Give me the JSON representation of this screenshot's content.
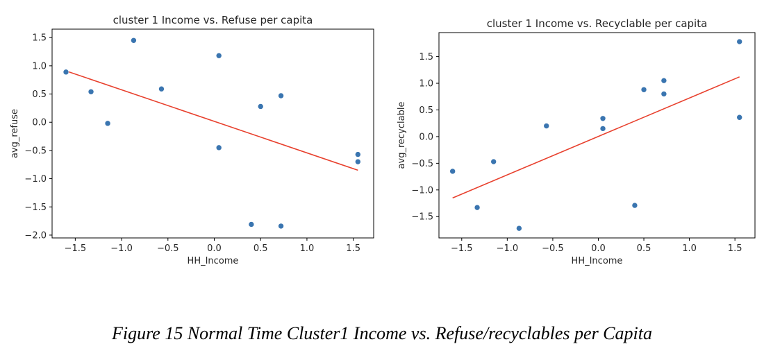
{
  "caption": "Figure 15 Normal Time Cluster1 Income vs. Refuse/recyclables per Capita",
  "colors": {
    "points": "#3a75b0",
    "fit_line": "#e8412e",
    "axis": "#000000"
  },
  "chart_data": [
    {
      "type": "scatter",
      "title": "cluster 1 Income vs. Refuse per capita",
      "xlabel": "HH_Income",
      "ylabel": "avg_refuse",
      "xlim": [
        -1.75,
        1.72
      ],
      "ylim": [
        -2.05,
        1.65
      ],
      "xticks": [
        -1.5,
        -1.0,
        -0.5,
        0.0,
        0.5,
        1.0,
        1.5
      ],
      "xtick_labels": [
        "−1.5",
        "−1.0",
        "−0.5",
        "0.0",
        "0.5",
        "1.0",
        "1.5"
      ],
      "yticks": [
        1.5,
        1.0,
        0.5,
        0.0,
        -0.5,
        -1.0,
        -1.5,
        -2.0
      ],
      "ytick_labels": [
        "1.5",
        "1.0",
        "0.5",
        "0.0",
        "−0.5",
        "−1.0",
        "−1.5",
        "−2.0"
      ],
      "points": [
        {
          "x": -1.6,
          "y": 0.89
        },
        {
          "x": -1.33,
          "y": 0.54
        },
        {
          "x": -1.15,
          "y": -0.02
        },
        {
          "x": -0.87,
          "y": 1.45
        },
        {
          "x": -0.57,
          "y": 0.59
        },
        {
          "x": 0.05,
          "y": 1.18
        },
        {
          "x": 0.05,
          "y": -0.45
        },
        {
          "x": 0.4,
          "y": -1.81
        },
        {
          "x": 0.5,
          "y": 0.28
        },
        {
          "x": 0.72,
          "y": 0.47
        },
        {
          "x": 0.72,
          "y": -1.84
        },
        {
          "x": 1.55,
          "y": -0.57
        },
        {
          "x": 1.55,
          "y": -0.7
        }
      ],
      "fit_line": {
        "x": [
          -1.6,
          1.55
        ],
        "y": [
          0.91,
          -0.85
        ]
      },
      "grid": false
    },
    {
      "type": "scatter",
      "title": "cluster 1 Income vs. Recyclable per capita",
      "xlabel": "HH_Income",
      "ylabel": "avg_recyclable",
      "xlim": [
        -1.75,
        1.72
      ],
      "ylim": [
        -1.9,
        1.95
      ],
      "xticks": [
        -1.5,
        -1.0,
        -0.5,
        0.0,
        0.5,
        1.0,
        1.5
      ],
      "xtick_labels": [
        "−1.5",
        "−1.0",
        "−0.5",
        "0.0",
        "0.5",
        "1.0",
        "1.5"
      ],
      "yticks": [
        1.5,
        1.0,
        0.5,
        0.0,
        -0.5,
        -1.0,
        -1.5
      ],
      "ytick_labels": [
        "1.5",
        "1.0",
        "0.5",
        "0.0",
        "−0.5",
        "−1.0",
        "−1.5"
      ],
      "points": [
        {
          "x": -1.6,
          "y": -0.65
        },
        {
          "x": -1.33,
          "y": -1.33
        },
        {
          "x": -1.15,
          "y": -0.47
        },
        {
          "x": -0.87,
          "y": -1.72
        },
        {
          "x": -0.57,
          "y": 0.2
        },
        {
          "x": 0.05,
          "y": 0.34
        },
        {
          "x": 0.05,
          "y": 0.15
        },
        {
          "x": 0.4,
          "y": -1.29
        },
        {
          "x": 0.5,
          "y": 0.88
        },
        {
          "x": 0.72,
          "y": 1.05
        },
        {
          "x": 0.72,
          "y": 0.8
        },
        {
          "x": 1.55,
          "y": 1.78
        },
        {
          "x": 1.55,
          "y": 0.36
        }
      ],
      "fit_line": {
        "x": [
          -1.6,
          1.55
        ],
        "y": [
          -1.15,
          1.12
        ]
      },
      "grid": false
    }
  ]
}
